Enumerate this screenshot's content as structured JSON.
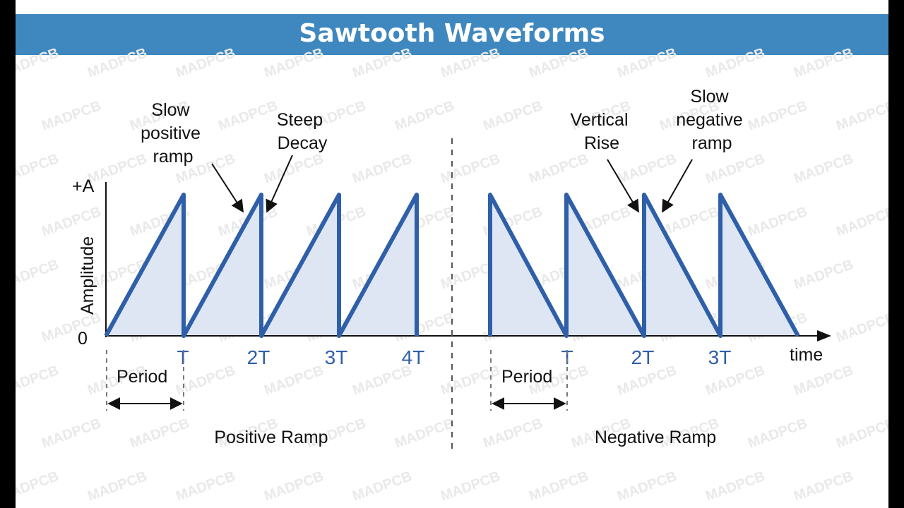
{
  "title": "Sawtooth Waveforms",
  "watermark": "MADPCB",
  "colors": {
    "title_bar": "#3f88bf",
    "wave": "#2f5fa8",
    "fill": "#dde6f2",
    "tick": "#2f5fa8"
  },
  "axis": {
    "y_label": "Amplitude",
    "y_top": "+A",
    "y_zero": "0",
    "x_label": "time"
  },
  "positive": {
    "section_label": "Positive Ramp",
    "ticks": [
      "T",
      "2T",
      "3T",
      "4T"
    ],
    "period_label": "Period",
    "annotations": {
      "slow_ramp": [
        "Slow",
        "positive",
        "ramp"
      ],
      "steep_decay": [
        "Steep",
        "Decay"
      ]
    }
  },
  "negative": {
    "section_label": "Negative Ramp",
    "ticks": [
      "T",
      "2T",
      "3T"
    ],
    "period_label": "Period",
    "annotations": {
      "vertical_rise": [
        "Vertical",
        "Rise"
      ],
      "slow_ramp": [
        "Slow",
        "negative",
        "ramp"
      ]
    }
  }
}
